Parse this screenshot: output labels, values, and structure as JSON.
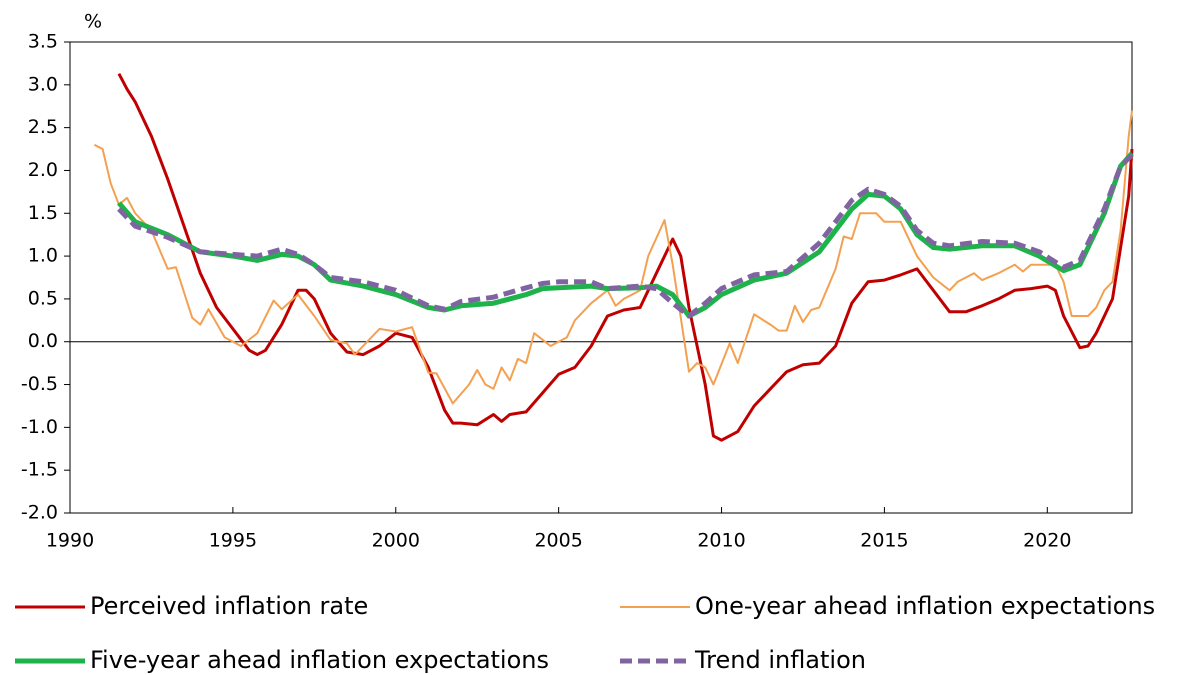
{
  "chart_data": {
    "type": "line",
    "y_label": "%",
    "xlim": [
      1990,
      2022.6
    ],
    "xticks": [
      1990,
      1995,
      2000,
      2005,
      2010,
      2015,
      2020
    ],
    "ylim": [
      -2.0,
      3.5
    ],
    "yticks": [
      3.5,
      {
        "value": 3.0,
        "label": "3.0"
      },
      2.5,
      {
        "value": 2.0,
        "label": "2.0"
      },
      1.5,
      {
        "value": 1.0,
        "label": "1.0"
      },
      0.5,
      {
        "value": 0.0,
        "label": "0.0"
      },
      -0.5,
      {
        "value": -1.0,
        "label": "-1.0"
      },
      -1.5,
      {
        "value": -2.0,
        "label": "-2.0"
      }
    ],
    "series": [
      {
        "name": "Perceived inflation rate",
        "color": "#c00000",
        "x": [
          1991.5,
          1991.75,
          1992,
          1992.5,
          1993,
          1993.5,
          1994,
          1994.5,
          1995,
          1995.5,
          1995.75,
          1996,
          1996.5,
          1997,
          1997.25,
          1997.5,
          1998,
          1998.5,
          1999,
          1999.5,
          2000,
          2000.5,
          2001,
          2001.5,
          2001.75,
          2002,
          2002.5,
          2003,
          2003.25,
          2003.5,
          2004,
          2004.5,
          2005,
          2005.5,
          2006,
          2006.5,
          2007,
          2007.5,
          2008,
          2008.5,
          2008.75,
          2009,
          2009.5,
          2009.75,
          2010,
          2010.5,
          2011,
          2011.5,
          2012,
          2012.5,
          2013,
          2013.5,
          2014,
          2014.5,
          2015,
          2015.5,
          2016,
          2016.5,
          2017,
          2017.5,
          2018,
          2018.5,
          2019,
          2019.5,
          2020,
          2020.25,
          2020.5,
          2021,
          2021.25,
          2021.5,
          2022,
          2022.5,
          2022.6
        ],
        "values": [
          3.13,
          2.95,
          2.8,
          2.4,
          1.9,
          1.35,
          0.8,
          0.4,
          0.15,
          -0.1,
          -0.15,
          -0.1,
          0.2,
          0.6,
          0.6,
          0.5,
          0.1,
          -0.12,
          -0.15,
          -0.05,
          0.1,
          0.05,
          -0.3,
          -0.8,
          -0.95,
          -0.95,
          -0.97,
          -0.85,
          -0.93,
          -0.85,
          -0.82,
          -0.6,
          -0.38,
          -0.3,
          -0.05,
          0.3,
          0.37,
          0.4,
          0.8,
          1.2,
          1.0,
          0.4,
          -0.5,
          -1.1,
          -1.15,
          -1.05,
          -0.75,
          -0.55,
          -0.35,
          -0.27,
          -0.25,
          -0.05,
          0.45,
          0.7,
          0.72,
          0.78,
          0.85,
          0.6,
          0.35,
          0.35,
          0.42,
          0.5,
          0.6,
          0.62,
          0.65,
          0.6,
          0.3,
          -0.07,
          -0.05,
          0.1,
          0.5,
          1.7,
          2.25
        ]
      },
      {
        "name": "One-year ahead inflation expectations",
        "color": "#f4a050",
        "x": [
          1990.75,
          1991,
          1991.25,
          1991.5,
          1991.75,
          1992,
          1992.5,
          1993,
          1993.25,
          1993.75,
          1994,
          1994.25,
          1994.75,
          1995.25,
          1995.75,
          1996.25,
          1996.5,
          1997,
          1997.5,
          1998,
          1998.5,
          1998.75,
          1999.25,
          1999.5,
          2000,
          2000.5,
          2001,
          2001.25,
          2001.75,
          2002.25,
          2002.5,
          2002.75,
          2003,
          2003.25,
          2003.5,
          2003.75,
          2004,
          2004.25,
          2004.75,
          2005.25,
          2005.5,
          2006,
          2006.5,
          2006.75,
          2007,
          2007.5,
          2007.75,
          2008.25,
          2008.5,
          2009,
          2009.25,
          2009.5,
          2009.75,
          2010.25,
          2010.5,
          2011,
          2011.5,
          2011.75,
          2012,
          2012.25,
          2012.5,
          2012.75,
          2013,
          2013.5,
          2013.75,
          2014,
          2014.25,
          2014.75,
          2015,
          2015.5,
          2016,
          2016.5,
          2017,
          2017.25,
          2017.75,
          2018,
          2018.5,
          2019,
          2019.25,
          2019.5,
          2020.25,
          2020.5,
          2020.75,
          2021.25,
          2021.5,
          2021.75,
          2022,
          2022.25,
          2022.5,
          2022.6
        ],
        "values": [
          2.3,
          2.25,
          1.85,
          1.6,
          1.68,
          1.5,
          1.3,
          0.85,
          0.87,
          0.28,
          0.2,
          0.38,
          0.05,
          -0.05,
          0.1,
          0.48,
          0.38,
          0.55,
          0.3,
          0.02,
          -0.02,
          -0.15,
          0.05,
          0.15,
          0.12,
          0.17,
          -0.36,
          -0.37,
          -0.72,
          -0.5,
          -0.33,
          -0.5,
          -0.55,
          -0.3,
          -0.45,
          -0.2,
          -0.25,
          0.1,
          -0.05,
          0.05,
          0.25,
          0.45,
          0.6,
          0.42,
          0.5,
          0.6,
          1.0,
          1.42,
          0.9,
          -0.35,
          -0.25,
          -0.3,
          -0.5,
          -0.02,
          -0.25,
          0.32,
          0.2,
          0.13,
          0.13,
          0.42,
          0.23,
          0.37,
          0.4,
          0.85,
          1.23,
          1.2,
          1.5,
          1.5,
          1.4,
          1.4,
          1.0,
          0.75,
          0.6,
          0.7,
          0.8,
          0.72,
          0.8,
          0.9,
          0.82,
          0.9,
          0.9,
          0.7,
          0.3,
          0.3,
          0.4,
          0.6,
          0.7,
          1.3,
          2.4,
          2.7
        ]
      },
      {
        "name": "Five-year ahead inflation expectations",
        "color": "#1db34a",
        "x": [
          1991.5,
          1992,
          1993,
          1994,
          1995,
          1995.75,
          1996.5,
          1997,
          1997.5,
          1998,
          1999,
          2000,
          2001,
          2001.5,
          2002,
          2003,
          2004,
          2004.5,
          2005,
          2006,
          2006.5,
          2007.5,
          2008,
          2008.5,
          2009,
          2009.5,
          2010,
          2011,
          2012,
          2013,
          2014,
          2014.5,
          2015,
          2015.5,
          2016,
          2016.5,
          2017,
          2018,
          2019,
          2019.75,
          2020.5,
          2021,
          2021.75,
          2022.25,
          2022.6
        ],
        "values": [
          1.62,
          1.4,
          1.25,
          1.05,
          1.0,
          0.95,
          1.02,
          1.0,
          0.9,
          0.72,
          0.65,
          0.55,
          0.4,
          0.37,
          0.42,
          0.45,
          0.55,
          0.62,
          0.63,
          0.65,
          0.62,
          0.63,
          0.65,
          0.55,
          0.3,
          0.4,
          0.55,
          0.72,
          0.8,
          1.05,
          1.55,
          1.72,
          1.7,
          1.55,
          1.25,
          1.1,
          1.08,
          1.12,
          1.12,
          1.0,
          0.83,
          0.9,
          1.5,
          2.05,
          2.2
        ]
      },
      {
        "name": "Trend inflation",
        "color": "#8064a2",
        "dashed": true,
        "x": [
          1991.5,
          1992,
          1993,
          1994,
          1995,
          1995.75,
          1996.5,
          1997,
          1997.5,
          1998,
          1999,
          2000,
          2001,
          2001.5,
          2002,
          2003,
          2004,
          2004.5,
          2005,
          2006,
          2006.5,
          2007.5,
          2008,
          2008.5,
          2009,
          2009.5,
          2010,
          2011,
          2012,
          2013,
          2014,
          2014.5,
          2015,
          2015.5,
          2016,
          2016.5,
          2017,
          2018,
          2019,
          2019.75,
          2020.5,
          2021,
          2021.75,
          2022.25,
          2022.6
        ],
        "values": [
          1.55,
          1.35,
          1.22,
          1.05,
          1.02,
          1.0,
          1.08,
          1.02,
          0.9,
          0.75,
          0.7,
          0.6,
          0.42,
          0.38,
          0.47,
          0.52,
          0.63,
          0.68,
          0.7,
          0.7,
          0.62,
          0.65,
          0.62,
          0.45,
          0.3,
          0.45,
          0.62,
          0.78,
          0.82,
          1.15,
          1.65,
          1.78,
          1.72,
          1.58,
          1.3,
          1.15,
          1.12,
          1.17,
          1.15,
          1.05,
          0.87,
          0.95,
          1.55,
          2.05,
          2.18
        ]
      }
    ]
  }
}
